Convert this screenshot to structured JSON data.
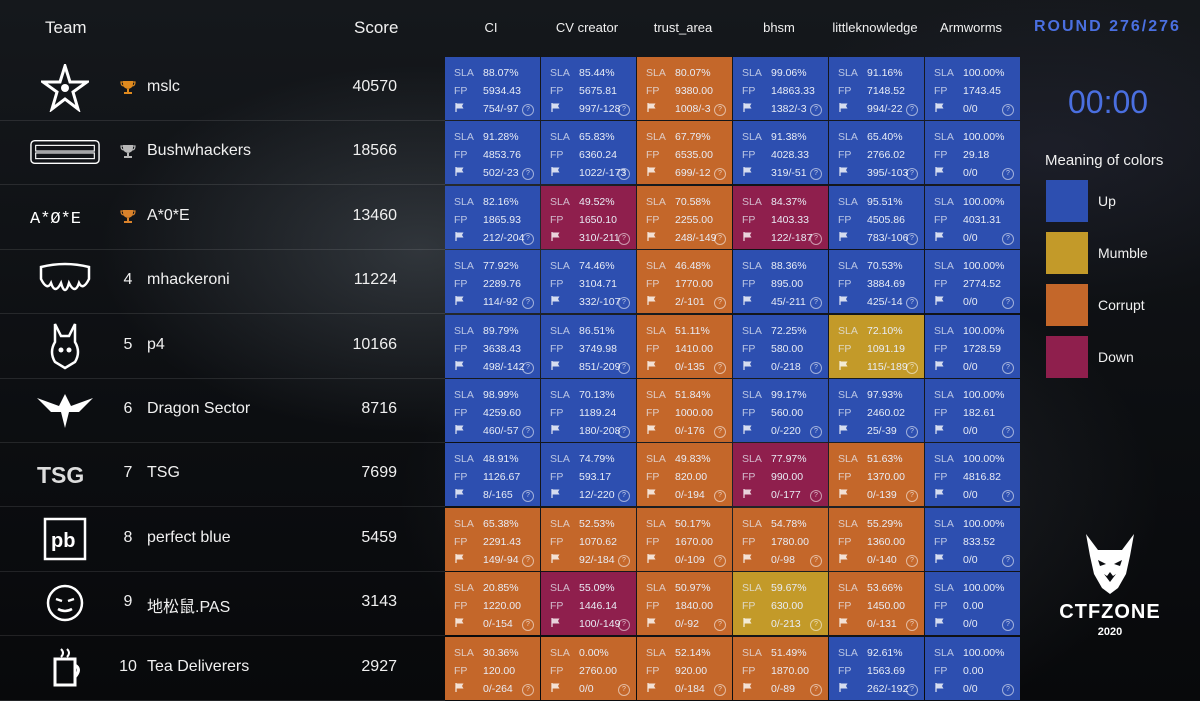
{
  "header": {
    "team": "Team",
    "score": "Score",
    "round": "ROUND 276/276"
  },
  "services": [
    "CI",
    "CV creator",
    "trust_area",
    "bhsm",
    "littleknowledge",
    "Armworms"
  ],
  "teams": [
    {
      "rank": "",
      "trophy": "gold",
      "name": "mslc",
      "score": "40570",
      "logo": "star-logo-icon"
    },
    {
      "rank": "",
      "trophy": "silver",
      "name": "Bushwhackers",
      "score": "18566",
      "logo": "bushwhackers-logo-icon"
    },
    {
      "rank": "",
      "trophy": "bronze",
      "name": "A*0*E",
      "score": "13460",
      "logo": "aoe-logo-icon"
    },
    {
      "rank": "4",
      "trophy": "",
      "name": "mhackeroni",
      "score": "11224",
      "logo": "mhackeroni-logo-icon"
    },
    {
      "rank": "5",
      "trophy": "",
      "name": "p4",
      "score": "10166",
      "logo": "p4-logo-icon"
    },
    {
      "rank": "6",
      "trophy": "",
      "name": "Dragon Sector",
      "score": "8716",
      "logo": "dragon-logo-icon"
    },
    {
      "rank": "7",
      "trophy": "",
      "name": "TSG",
      "score": "7699",
      "logo": "tsg-logo-icon"
    },
    {
      "rank": "8",
      "trophy": "",
      "name": "perfect blue",
      "score": "5459",
      "logo": "pb-logo-icon"
    },
    {
      "rank": "9",
      "trophy": "",
      "name": "地松鼠.PAS",
      "score": "3143",
      "logo": "pas-logo-icon"
    },
    {
      "rank": "10",
      "trophy": "",
      "name": "Tea Deliverers",
      "score": "2927",
      "logo": "tea-logo-icon"
    }
  ],
  "grid": [
    [
      [
        "up",
        "88.07%",
        "5934.43",
        "754/-97"
      ],
      [
        "up",
        "85.44%",
        "5675.81",
        "997/-128"
      ],
      [
        "corrupt",
        "80.07%",
        "9380.00",
        "1008/-3"
      ],
      [
        "up",
        "99.06%",
        "14863.33",
        "1382/-3"
      ],
      [
        "up",
        "91.16%",
        "7148.52",
        "994/-22"
      ],
      [
        "up",
        "100.00%",
        "1743.45",
        "0/0"
      ]
    ],
    [
      [
        "up",
        "91.28%",
        "4853.76",
        "502/-23"
      ],
      [
        "up",
        "65.83%",
        "6360.24",
        "1022/-173"
      ],
      [
        "corrupt",
        "67.79%",
        "6535.00",
        "699/-12"
      ],
      [
        "up",
        "91.38%",
        "4028.33",
        "319/-51"
      ],
      [
        "up",
        "65.40%",
        "2766.02",
        "395/-103"
      ],
      [
        "up",
        "100.00%",
        "29.18",
        "0/0"
      ]
    ],
    [
      [
        "up",
        "82.16%",
        "1865.93",
        "212/-204"
      ],
      [
        "down",
        "49.52%",
        "1650.10",
        "310/-211"
      ],
      [
        "corrupt",
        "70.58%",
        "2255.00",
        "248/-149"
      ],
      [
        "down",
        "84.37%",
        "1403.33",
        "122/-187"
      ],
      [
        "up",
        "95.51%",
        "4505.86",
        "783/-106"
      ],
      [
        "up",
        "100.00%",
        "4031.31",
        "0/0"
      ]
    ],
    [
      [
        "up",
        "77.92%",
        "2289.76",
        "114/-92"
      ],
      [
        "up",
        "74.46%",
        "3104.71",
        "332/-107"
      ],
      [
        "corrupt",
        "46.48%",
        "1770.00",
        "2/-101"
      ],
      [
        "up",
        "88.36%",
        "895.00",
        "45/-211"
      ],
      [
        "up",
        "70.53%",
        "3884.69",
        "425/-14"
      ],
      [
        "up",
        "100.00%",
        "2774.52",
        "0/0"
      ]
    ],
    [
      [
        "up",
        "89.79%",
        "3638.43",
        "498/-142"
      ],
      [
        "up",
        "86.51%",
        "3749.98",
        "851/-209"
      ],
      [
        "corrupt",
        "51.11%",
        "1410.00",
        "0/-135"
      ],
      [
        "up",
        "72.25%",
        "580.00",
        "0/-218"
      ],
      [
        "mumble",
        "72.10%",
        "1091.19",
        "115/-189"
      ],
      [
        "up",
        "100.00%",
        "1728.59",
        "0/0"
      ]
    ],
    [
      [
        "up",
        "98.99%",
        "4259.60",
        "460/-57"
      ],
      [
        "up",
        "70.13%",
        "1189.24",
        "180/-208"
      ],
      [
        "corrupt",
        "51.84%",
        "1000.00",
        "0/-176"
      ],
      [
        "up",
        "99.17%",
        "560.00",
        "0/-220"
      ],
      [
        "up",
        "97.93%",
        "2460.02",
        "25/-39"
      ],
      [
        "up",
        "100.00%",
        "182.61",
        "0/0"
      ]
    ],
    [
      [
        "up",
        "48.91%",
        "1126.67",
        "8/-165"
      ],
      [
        "up",
        "74.79%",
        "593.17",
        "12/-220"
      ],
      [
        "corrupt",
        "49.83%",
        "820.00",
        "0/-194"
      ],
      [
        "down",
        "77.97%",
        "990.00",
        "0/-177"
      ],
      [
        "corrupt",
        "51.63%",
        "1370.00",
        "0/-139"
      ],
      [
        "up",
        "100.00%",
        "4816.82",
        "0/0"
      ]
    ],
    [
      [
        "corrupt",
        "65.38%",
        "2291.43",
        "149/-94"
      ],
      [
        "corrupt",
        "52.53%",
        "1070.62",
        "92/-184"
      ],
      [
        "corrupt",
        "50.17%",
        "1670.00",
        "0/-109"
      ],
      [
        "corrupt",
        "54.78%",
        "1780.00",
        "0/-98"
      ],
      [
        "corrupt",
        "55.29%",
        "1360.00",
        "0/-140"
      ],
      [
        "up",
        "100.00%",
        "833.52",
        "0/0"
      ]
    ],
    [
      [
        "corrupt",
        "20.85%",
        "1220.00",
        "0/-154"
      ],
      [
        "down",
        "55.09%",
        "1446.14",
        "100/-149"
      ],
      [
        "corrupt",
        "50.97%",
        "1840.00",
        "0/-92"
      ],
      [
        "mumble",
        "59.67%",
        "630.00",
        "0/-213"
      ],
      [
        "corrupt",
        "53.66%",
        "1450.00",
        "0/-131"
      ],
      [
        "up",
        "100.00%",
        "0.00",
        "0/0"
      ]
    ],
    [
      [
        "corrupt",
        "30.36%",
        "120.00",
        "0/-264"
      ],
      [
        "corrupt",
        "0.00%",
        "2760.00",
        "0/0"
      ],
      [
        "corrupt",
        "52.14%",
        "920.00",
        "0/-184"
      ],
      [
        "corrupt",
        "51.49%",
        "1870.00",
        "0/-89"
      ],
      [
        "up",
        "92.61%",
        "1563.69",
        "262/-192"
      ],
      [
        "up",
        "100.00%",
        "0.00",
        "0/0"
      ]
    ]
  ],
  "cell_labels": {
    "sla": "SLA",
    "fp": "FP"
  },
  "timer": "00:00",
  "legend": {
    "title": "Meaning of colors",
    "items": [
      {
        "label": "Up",
        "color": "#2d4fb0"
      },
      {
        "label": "Mumble",
        "color": "#c39a29"
      },
      {
        "label": "Corrupt",
        "color": "#c4672a"
      },
      {
        "label": "Down",
        "color": "#8f1f4d"
      }
    ]
  },
  "brand": {
    "name": "CTFZONE",
    "year": "2020"
  },
  "colors": {
    "accent": "#4a6fe0",
    "gold": "#e08a1e",
    "silver": "#b8b8b8",
    "bronze": "#d9822b"
  }
}
